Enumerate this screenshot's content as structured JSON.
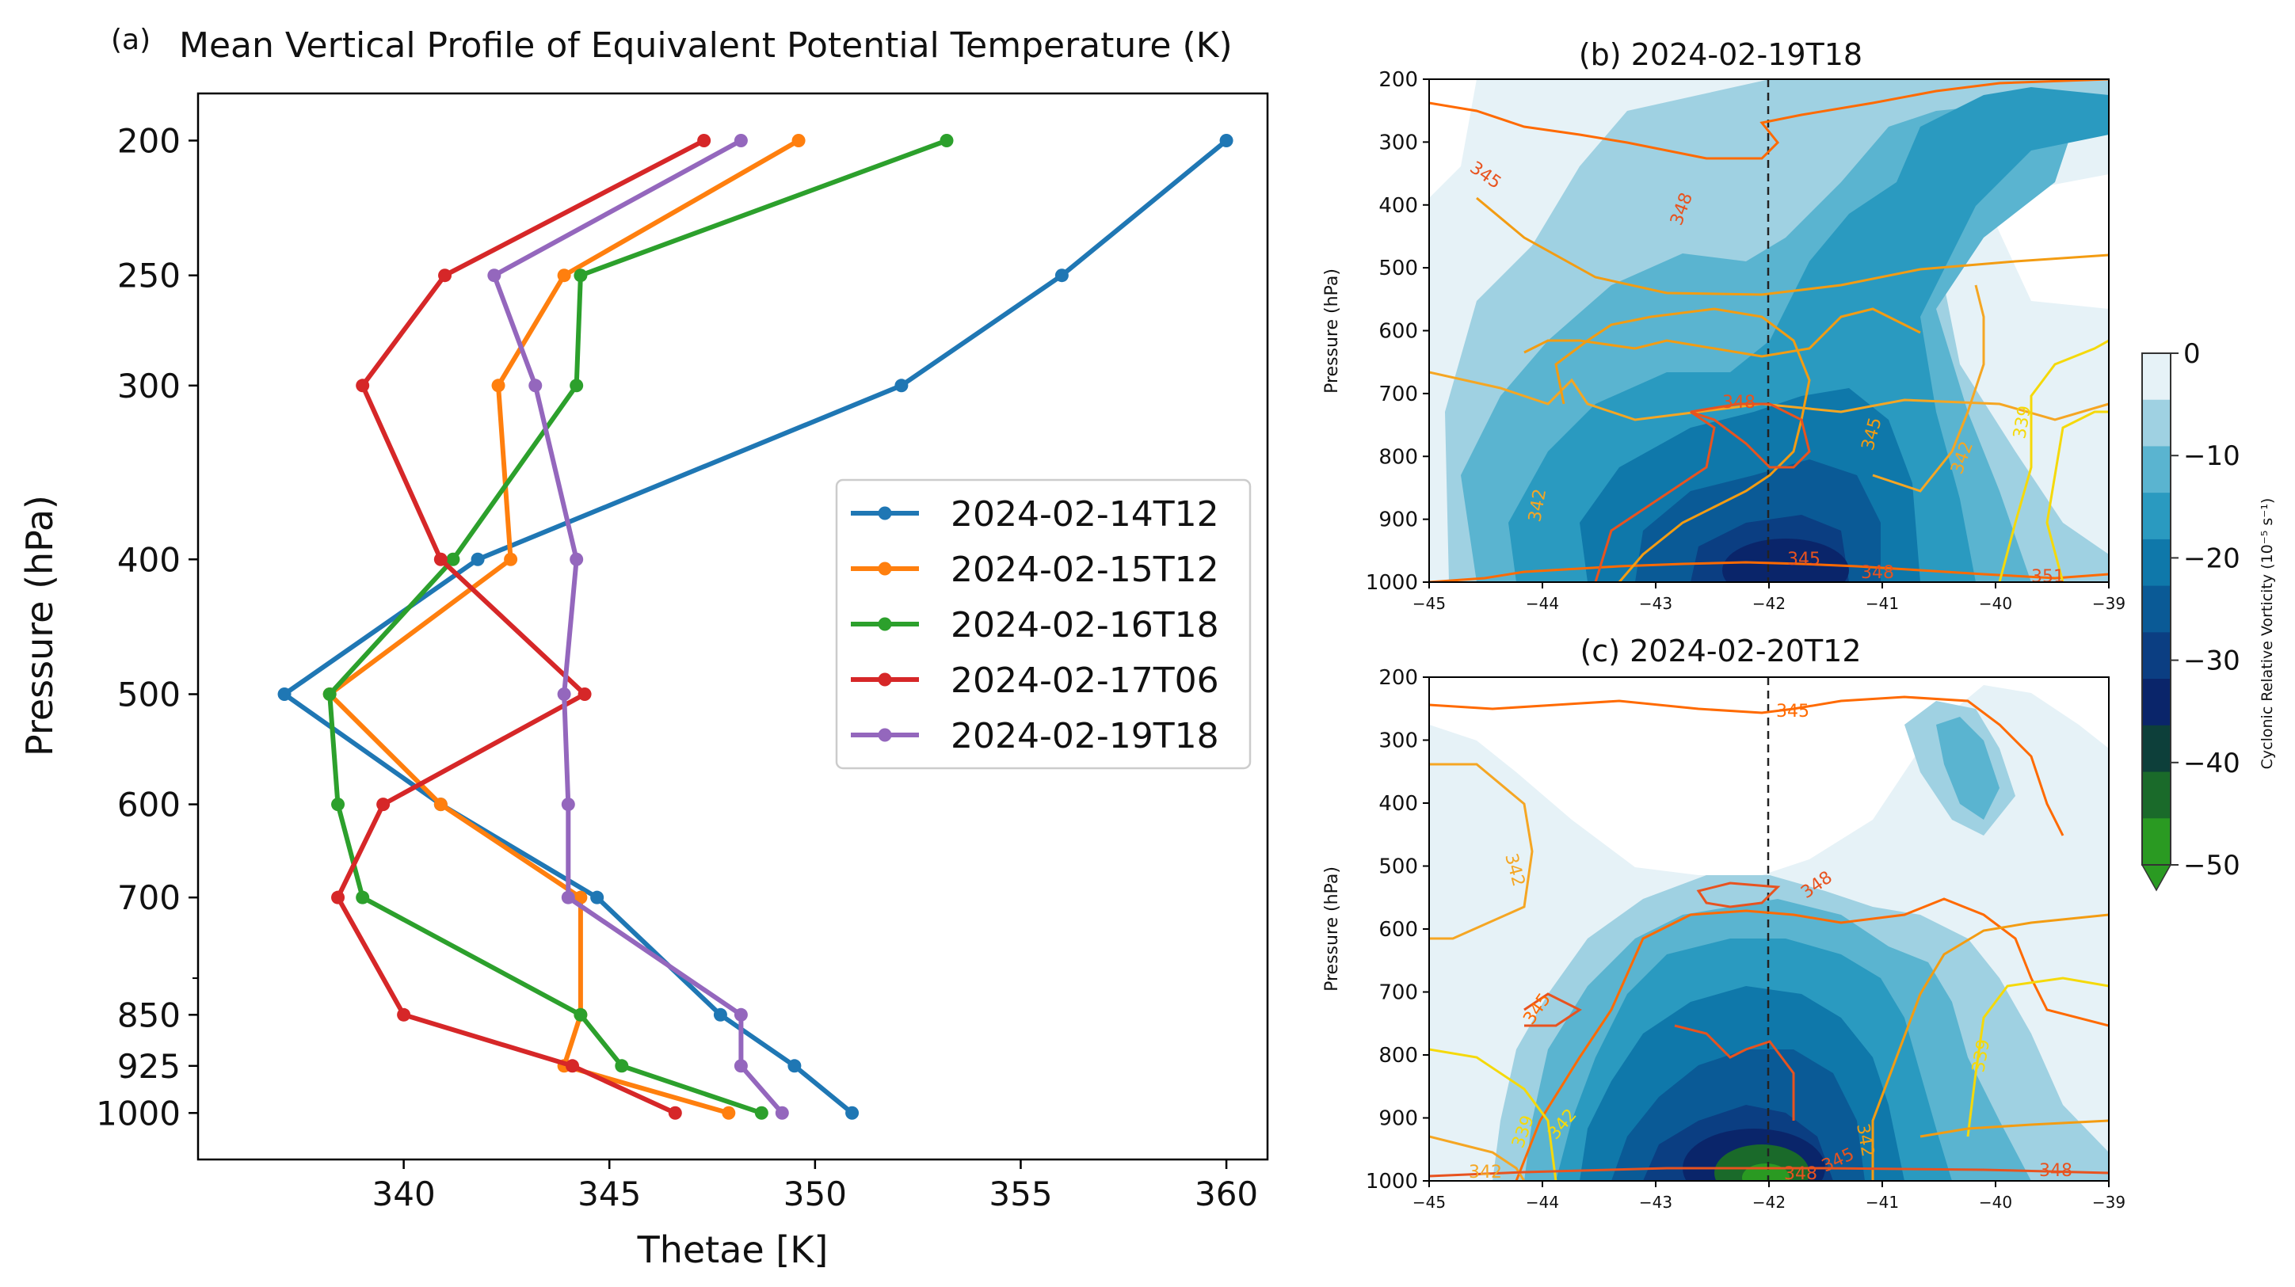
{
  "chart_data": [
    {
      "type": "line",
      "panel": "(a)",
      "title": "Mean Vertical Profile of Equivalent Potential Temperature (K)",
      "xlabel": "Thetae [K]",
      "ylabel": "Pressure (hPa)",
      "xlim": [
        335.0,
        361.0
      ],
      "ylim": [
        1080,
        185
      ],
      "yscale": "log",
      "xticks": [
        340,
        345,
        350,
        355,
        360
      ],
      "yticks": [
        200,
        250,
        300,
        400,
        500,
        600,
        700,
        850,
        925,
        1000
      ],
      "y": [
        200,
        250,
        300,
        400,
        500,
        600,
        700,
        850,
        925,
        1000
      ],
      "legend_position": "center-right",
      "series": [
        {
          "name": "2024-02-14T12",
          "color": "#1f77b4",
          "values": [
            360.0,
            356.0,
            352.1,
            341.8,
            337.1,
            340.9,
            344.7,
            347.7,
            349.5,
            350.9
          ]
        },
        {
          "name": "2024-02-15T12",
          "color": "#ff7f0e",
          "values": [
            349.6,
            343.9,
            342.3,
            342.6,
            338.2,
            340.9,
            344.3,
            344.3,
            343.9,
            347.9
          ]
        },
        {
          "name": "2024-02-16T18",
          "color": "#2ca02c",
          "values": [
            353.2,
            344.3,
            344.2,
            341.2,
            338.2,
            338.4,
            339.0,
            344.3,
            345.3,
            348.7
          ]
        },
        {
          "name": "2024-02-17T06",
          "color": "#d62728",
          "values": [
            347.3,
            341.0,
            339.0,
            340.9,
            344.4,
            339.5,
            338.4,
            340.0,
            344.1,
            346.6
          ]
        },
        {
          "name": "2024-02-19T18",
          "color": "#9467bd",
          "values": [
            348.2,
            342.2,
            343.2,
            344.2,
            343.9,
            344.0,
            344.0,
            348.2,
            348.2,
            349.2
          ]
        }
      ]
    },
    {
      "type": "contour",
      "panel": "(b)",
      "title": "(b) 2024-02-19T18",
      "ylabel": "Pressure (hPa)",
      "xlim": [
        -45,
        -39
      ],
      "ylim": [
        1000,
        200
      ],
      "xticks": [
        -45,
        -44,
        -43,
        -42,
        -41,
        -40,
        -39
      ],
      "yticks": [
        200,
        300,
        400,
        500,
        600,
        700,
        800,
        900,
        1000
      ],
      "vertical_line_x": -42,
      "contour_labels": [
        "345",
        "348",
        "348",
        "345",
        "342",
        "342",
        "339",
        "345",
        "348",
        "351"
      ]
    },
    {
      "type": "contour",
      "panel": "(c)",
      "title": "(c) 2024-02-20T12",
      "ylabel": "Pressure (hPa)",
      "xlim": [
        -45,
        -39
      ],
      "ylim": [
        1000,
        200
      ],
      "xticks": [
        -45,
        -44,
        -43,
        -42,
        -41,
        -40,
        -39
      ],
      "yticks": [
        200,
        300,
        400,
        500,
        600,
        700,
        800,
        900,
        1000
      ],
      "vertical_line_x": -42,
      "contour_labels": [
        "345",
        "342",
        "348",
        "345",
        "339",
        "342",
        "339",
        "342",
        "348",
        "345",
        "348",
        "342"
      ]
    },
    {
      "type": "colorbar",
      "label": "Cyclonic Relative Vorticity (10⁻⁵ s⁻¹)",
      "ticks": [
        "0",
        "−10",
        "−20",
        "−30",
        "−40",
        "−50"
      ],
      "colors": [
        "#e6f2f7",
        "#9fd1e2",
        "#5ab4d0",
        "#2a9ac0",
        "#0f78aa",
        "#0a5a96",
        "#0b3e82",
        "#0a256a",
        "#0d3f3a",
        "#1a6a2a",
        "#2a9a22"
      ]
    }
  ]
}
